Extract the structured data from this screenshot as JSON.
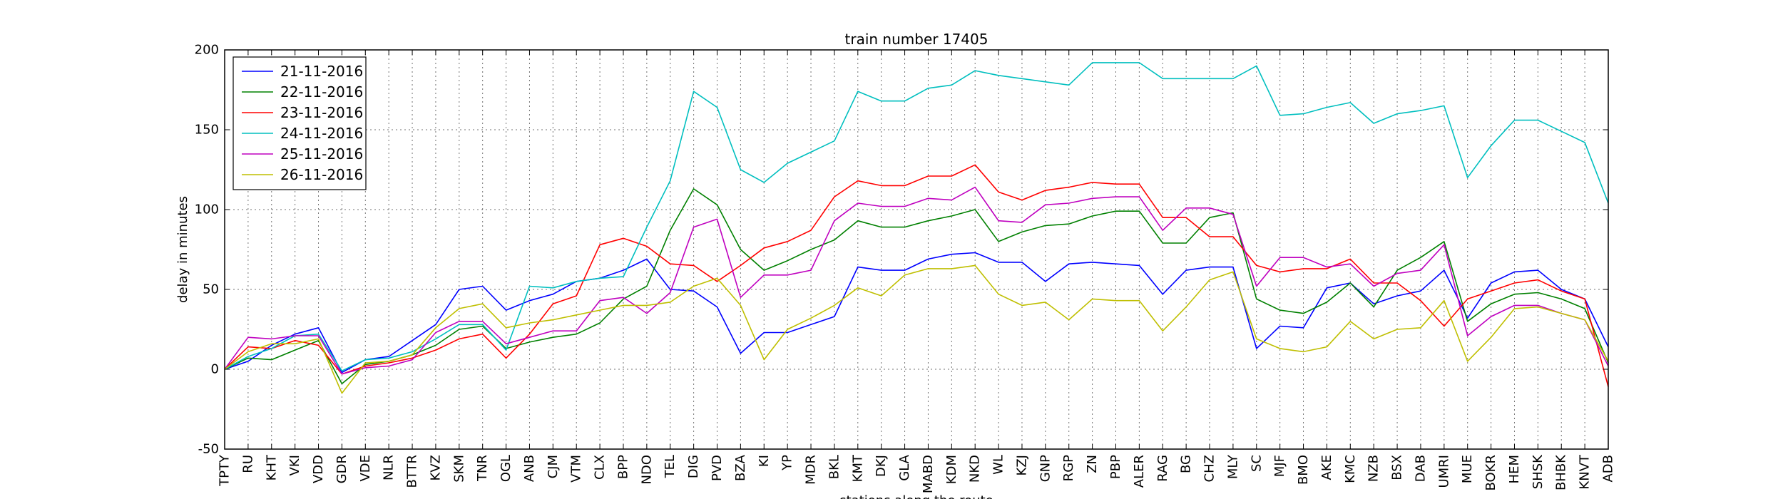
{
  "chart_data": {
    "type": "line",
    "title": "train number 17405",
    "xlabel": "stations along the route",
    "ylabel": "delay in minutes",
    "ylim": [
      -50,
      200
    ],
    "yticks": [
      -50,
      0,
      50,
      100,
      150,
      200
    ],
    "grid": true,
    "legend_position": "top-left",
    "categories": [
      "TPTY",
      "RU",
      "KHT",
      "VKI",
      "VDD",
      "GDR",
      "VDE",
      "NLR",
      "BTTR",
      "KVZ",
      "SKM",
      "TNR",
      "OGL",
      "ANB",
      "CJM",
      "VTM",
      "CLX",
      "BPP",
      "NDO",
      "TEL",
      "DIG",
      "PVD",
      "BZA",
      "KI",
      "YP",
      "MDR",
      "BKL",
      "KMT",
      "DKJ",
      "GLA",
      "MABD",
      "KDM",
      "NKD",
      "WL",
      "KZJ",
      "GNP",
      "RGP",
      "ZN",
      "PBP",
      "ALER",
      "RAG",
      "BG",
      "CHZ",
      "MLY",
      "SC",
      "MJF",
      "BMO",
      "AKE",
      "KMC",
      "NZB",
      "BSX",
      "DAB",
      "UMRI",
      "MUE",
      "BOKR",
      "HEM",
      "SHSK",
      "BHBK",
      "KNVT",
      "ADB"
    ],
    "series": [
      {
        "name": "21-11-2016",
        "color": "#0000ff",
        "values": [
          0,
          5,
          15,
          22,
          26,
          -2,
          6,
          8,
          18,
          28,
          50,
          52,
          37,
          43,
          47,
          55,
          57,
          62,
          69,
          50,
          49,
          39,
          10,
          23,
          23,
          28,
          33,
          64,
          62,
          62,
          69,
          72,
          73,
          67,
          67,
          55,
          66,
          67,
          66,
          65,
          47,
          62,
          64,
          64,
          13,
          27,
          26,
          51,
          54,
          41,
          46,
          49,
          62,
          32,
          54,
          61,
          62,
          50,
          44,
          14
        ]
      },
      {
        "name": "22-11-2016",
        "color": "#008000",
        "values": [
          0,
          7,
          6,
          12,
          18,
          -9,
          3,
          5,
          9,
          15,
          25,
          27,
          13,
          17,
          20,
          22,
          29,
          44,
          52,
          87,
          113,
          103,
          75,
          62,
          68,
          75,
          81,
          93,
          89,
          89,
          93,
          96,
          100,
          80,
          86,
          90,
          91,
          96,
          99,
          99,
          79,
          79,
          95,
          98,
          44,
          37,
          35,
          42,
          54,
          39,
          62,
          70,
          80,
          30,
          41,
          47,
          48,
          44,
          38,
          4
        ]
      },
      {
        "name": "23-11-2016",
        "color": "#ff0000",
        "values": [
          0,
          14,
          13,
          18,
          15,
          -3,
          2,
          4,
          7,
          12,
          19,
          22,
          7,
          22,
          41,
          46,
          78,
          82,
          77,
          66,
          65,
          55,
          65,
          76,
          80,
          87,
          108,
          118,
          115,
          115,
          121,
          121,
          128,
          111,
          106,
          112,
          114,
          117,
          116,
          116,
          95,
          95,
          83,
          83,
          65,
          61,
          63,
          63,
          69,
          54,
          54,
          43,
          27,
          44,
          49,
          54,
          56,
          49,
          44,
          -11
        ]
      },
      {
        "name": "24-11-2016",
        "color": "#00bfbf",
        "values": [
          0,
          8,
          13,
          21,
          22,
          -1,
          6,
          7,
          11,
          19,
          28,
          28,
          12,
          52,
          51,
          55,
          57,
          58,
          89,
          118,
          174,
          164,
          125,
          117,
          129,
          136,
          143,
          174,
          168,
          168,
          176,
          178,
          187,
          184,
          182,
          180,
          178,
          192,
          192,
          192,
          182,
          182,
          182,
          182,
          190,
          159,
          160,
          164,
          167,
          154,
          160,
          162,
          165,
          120,
          140,
          156,
          156,
          149,
          142,
          104
        ]
      },
      {
        "name": "25-11-2016",
        "color": "#bf00bf",
        "values": [
          0,
          20,
          19,
          21,
          21,
          -3,
          1,
          2,
          6,
          23,
          30,
          30,
          16,
          20,
          24,
          24,
          43,
          45,
          35,
          48,
          89,
          94,
          45,
          59,
          59,
          62,
          93,
          104,
          102,
          102,
          107,
          106,
          114,
          93,
          92,
          103,
          104,
          107,
          108,
          108,
          87,
          101,
          101,
          97,
          52,
          70,
          70,
          64,
          66,
          52,
          60,
          62,
          78,
          21,
          33,
          40,
          40,
          35,
          31,
          2
        ]
      },
      {
        "name": "26-11-2016",
        "color": "#bfbf00",
        "values": [
          0,
          11,
          16,
          16,
          19,
          -15,
          4,
          5,
          9,
          26,
          38,
          41,
          26,
          29,
          31,
          34,
          37,
          40,
          40,
          42,
          52,
          57,
          40,
          6,
          25,
          32,
          40,
          51,
          46,
          59,
          63,
          63,
          65,
          47,
          40,
          42,
          31,
          44,
          43,
          43,
          24,
          39,
          56,
          61,
          19,
          13,
          11,
          14,
          30,
          19,
          25,
          26,
          43,
          5,
          20,
          38,
          39,
          35,
          31,
          5
        ]
      }
    ]
  }
}
